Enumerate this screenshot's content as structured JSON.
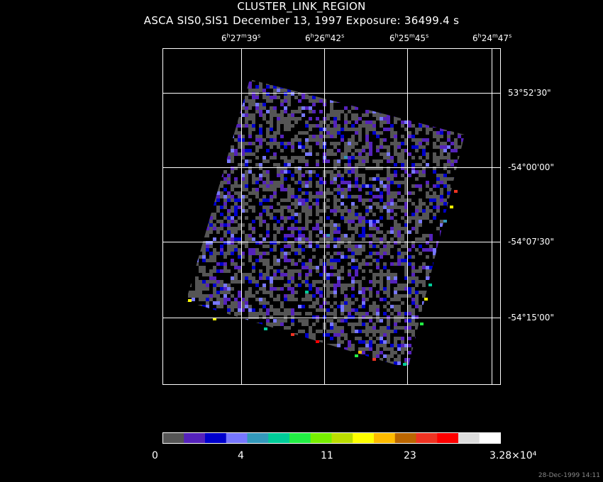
{
  "header": {
    "title": "CLUSTER_LINK_REGION",
    "subtitle": "ASCA SIS0,SIS1 December 13, 1997 Exposure: 36499.4 s"
  },
  "ra_labels": [
    {
      "h": "6",
      "m": "27",
      "s": "39"
    },
    {
      "h": "6",
      "m": "26",
      "s": "42"
    },
    {
      "h": "6",
      "m": "25",
      "s": "45"
    },
    {
      "h": "6",
      "m": "24",
      "s": "47"
    }
  ],
  "dec_labels": [
    "53°52'30\"",
    "-54°00'00\"",
    "-54°07'30\"",
    "-54°15'00\""
  ],
  "colorbar": {
    "colors": [
      "#555555",
      "#5522bb",
      "#0000cc",
      "#7777ff",
      "#3399bb",
      "#00cc99",
      "#22ee44",
      "#77ee00",
      "#bbdd00",
      "#ffff00",
      "#ffbb00",
      "#bb6600",
      "#ee3322",
      "#ff0000",
      "#dddddd",
      "#ffffff"
    ],
    "labels": [
      "0",
      "4",
      "11",
      "23",
      "3.28×10⁴"
    ]
  },
  "footer": "28-Dec-1999 14:11"
}
